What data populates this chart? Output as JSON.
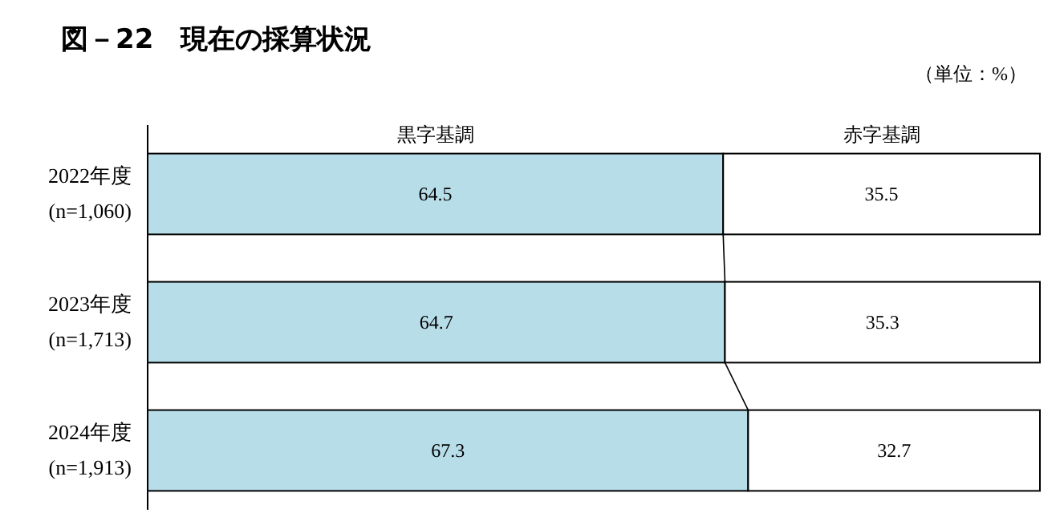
{
  "chart_data": {
    "type": "bar",
    "orientation": "horizontal",
    "stacked": true,
    "title": "図－22　現在の採算状況",
    "annotations": [
      "（単位：%）"
    ],
    "categories": [
      "2022年度\n(n=1,060)",
      "2023年度\n(n=1,713)",
      "2024年度\n(n=1,913)"
    ],
    "series": [
      {
        "name": "黒字基調",
        "color": "#b7dde8",
        "values": [
          64.5,
          64.7,
          67.3
        ]
      },
      {
        "name": "赤字基調",
        "color": "#ffffff",
        "values": [
          35.5,
          35.3,
          32.7
        ]
      }
    ],
    "data_labels": true,
    "legend": "top"
  }
}
